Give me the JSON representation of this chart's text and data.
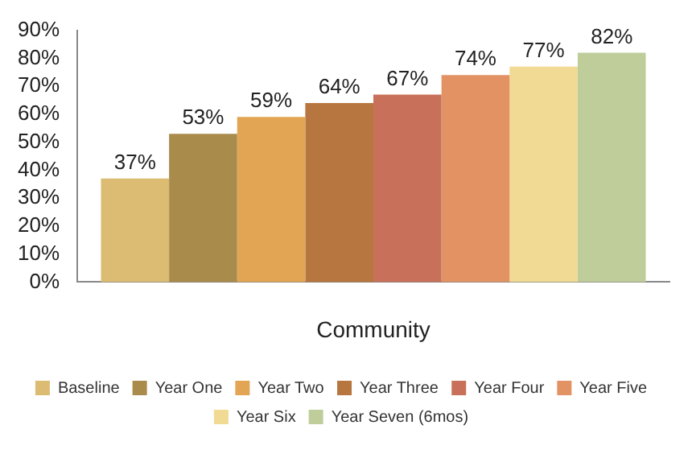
{
  "chart_data": {
    "type": "bar",
    "categories": [
      "Community"
    ],
    "series": [
      {
        "name": "Baseline",
        "color": "#dcbc72",
        "values": [
          37
        ],
        "value_labels": [
          "37%"
        ]
      },
      {
        "name": "Year One",
        "color": "#a98b4c",
        "values": [
          53
        ],
        "value_labels": [
          "53%"
        ]
      },
      {
        "name": "Year Two",
        "color": "#e2a553",
        "values": [
          59
        ],
        "value_labels": [
          "59%"
        ]
      },
      {
        "name": "Year Three",
        "color": "#b7763f",
        "values": [
          64
        ],
        "value_labels": [
          "64%"
        ]
      },
      {
        "name": "Year Four",
        "color": "#c9705b",
        "values": [
          67
        ],
        "value_labels": [
          "67%"
        ]
      },
      {
        "name": "Year Five",
        "color": "#e39264",
        "values": [
          74
        ],
        "value_labels": [
          "74%"
        ]
      },
      {
        "name": "Year Six",
        "color": "#f1da94",
        "values": [
          77
        ],
        "value_labels": [
          "77%"
        ]
      },
      {
        "name": "Year Seven (6mos)",
        "color": "#bfcd9b",
        "values": [
          82
        ],
        "value_labels": [
          "82%"
        ]
      }
    ],
    "ylim": [
      0,
      90
    ],
    "yticks": [
      {
        "value": 0,
        "label": "0%"
      },
      {
        "value": 10,
        "label": "10%"
      },
      {
        "value": 20,
        "label": "20%"
      },
      {
        "value": 30,
        "label": "30%"
      },
      {
        "value": 40,
        "label": "40%"
      },
      {
        "value": 50,
        "label": "50%"
      },
      {
        "value": 60,
        "label": "60%"
      },
      {
        "value": 70,
        "label": "70%"
      },
      {
        "value": 80,
        "label": "80%"
      },
      {
        "value": 90,
        "label": "90%"
      }
    ],
    "grid": false,
    "legend": "bottom"
  }
}
